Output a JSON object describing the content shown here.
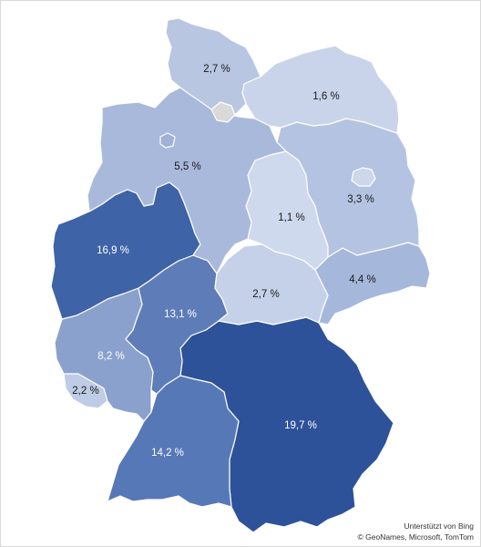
{
  "map": {
    "regions": [
      {
        "id": "schleswig-holstein",
        "value": "2,7 %",
        "share": 2.7,
        "color": "#b8c6e2"
      },
      {
        "id": "mecklenburg-vorpommern",
        "value": "1,6 %",
        "share": 1.6,
        "color": "#c9d4ea"
      },
      {
        "id": "hamburg",
        "value": "",
        "share": null,
        "color": "#d9d9d9"
      },
      {
        "id": "bremen",
        "value": "",
        "share": null,
        "color": "#9fb1d6"
      },
      {
        "id": "niedersachsen",
        "value": "5,5 %",
        "share": 5.5,
        "color": "#a9b9dc"
      },
      {
        "id": "berlin",
        "value": "",
        "share": null,
        "color": "#cdd7ec"
      },
      {
        "id": "brandenburg",
        "value": "3,3 %",
        "share": 3.3,
        "color": "#b4c3e1"
      },
      {
        "id": "sachsen-anhalt",
        "value": "1,1 %",
        "share": 1.1,
        "color": "#cfd9ed"
      },
      {
        "id": "nordrhein-westfalen",
        "value": "16,9 %",
        "share": 16.9,
        "color": "#3e63a6"
      },
      {
        "id": "hessen",
        "value": "13,1 %",
        "share": 13.1,
        "color": "#5e7db8"
      },
      {
        "id": "thueringen",
        "value": "2,7 %",
        "share": 2.7,
        "color": "#c5d1e9"
      },
      {
        "id": "sachsen",
        "value": "4,4 %",
        "share": 4.4,
        "color": "#a6b7dc"
      },
      {
        "id": "rheinland-pfalz",
        "value": "8,2 %",
        "share": 8.2,
        "color": "#8ba1cd"
      },
      {
        "id": "saarland",
        "value": "2,2 %",
        "share": 2.2,
        "color": "#bfcce6"
      },
      {
        "id": "baden-wuerttemberg",
        "value": "14,2 %",
        "share": 14.2,
        "color": "#5778b6"
      },
      {
        "id": "bayern",
        "value": "19,7 %",
        "share": 19.7,
        "color": "#2e5299"
      }
    ]
  },
  "attribution": {
    "line1": "Unterstützt von Bing",
    "line2": "© GeoNames, Microsoft, TomTom"
  }
}
